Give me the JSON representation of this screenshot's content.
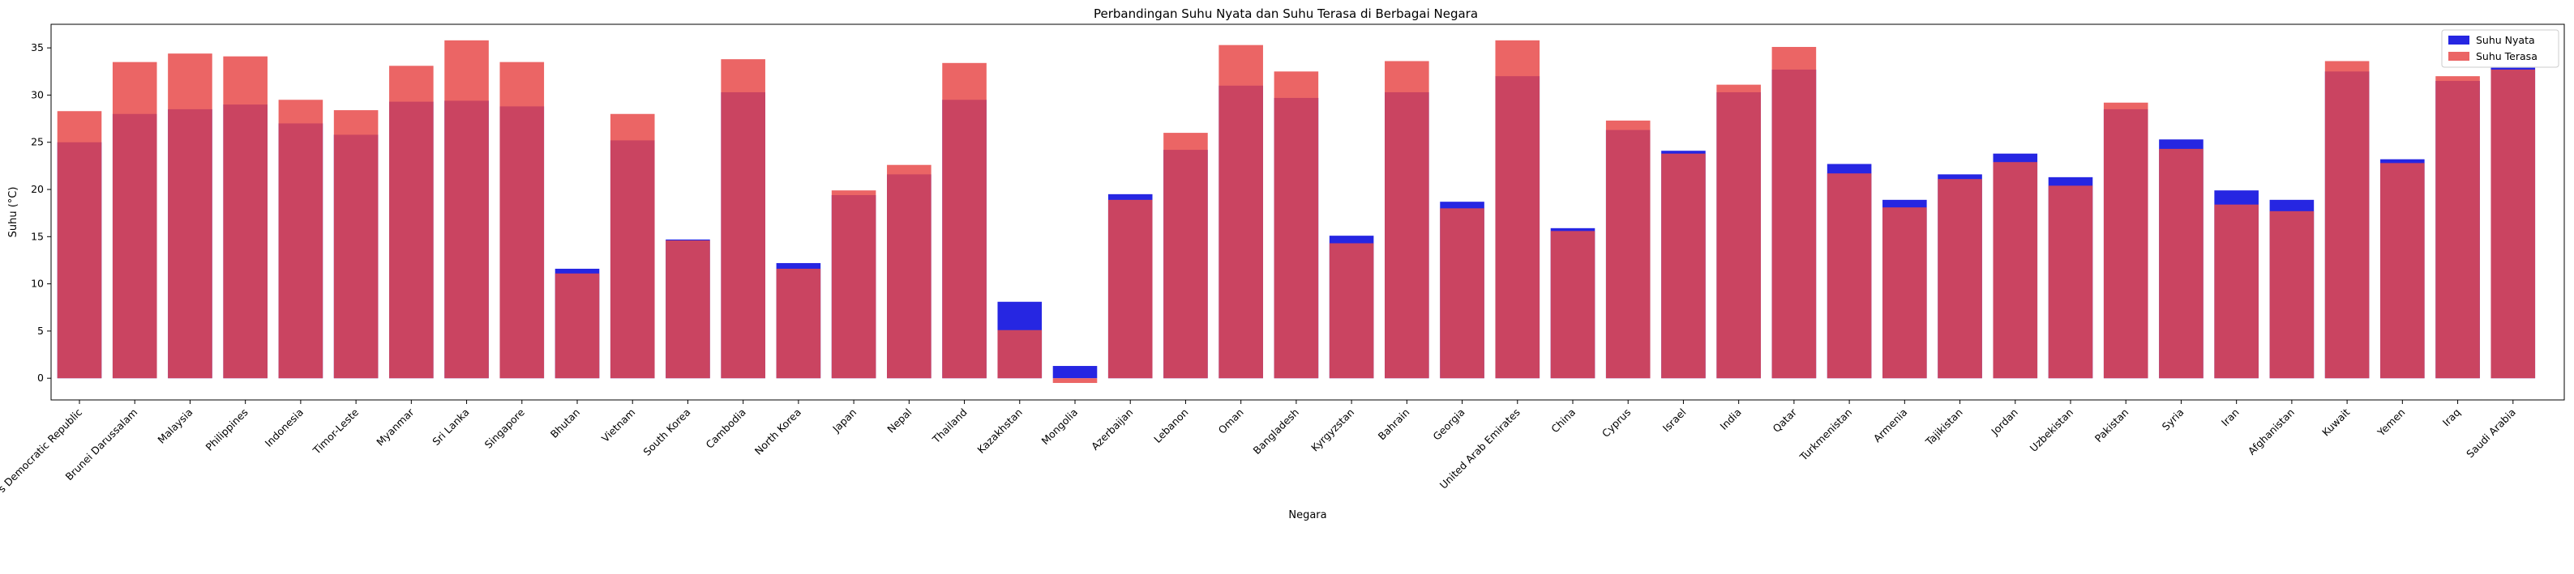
{
  "chart_data": {
    "type": "bar",
    "title": "Perbandingan Suhu Nyata dan Suhu Terasa di Berbagai Negara",
    "xlabel": "Negara",
    "ylabel": "Suhu (°C)",
    "ylim": [
      -2.3,
      37.5
    ],
    "yticks": [
      0,
      5,
      10,
      15,
      20,
      25,
      30,
      35
    ],
    "grid": false,
    "legend_position": "top-right",
    "categories": [
      "Lao People's Democratic Republic",
      "Brunei Darussalam",
      "Malaysia",
      "Philippines",
      "Indonesia",
      "Timor-Leste",
      "Myanmar",
      "Sri Lanka",
      "Singapore",
      "Bhutan",
      "Vietnam",
      "South Korea",
      "Cambodia",
      "North Korea",
      "Japan",
      "Nepal",
      "Thailand",
      "Kazakhstan",
      "Mongolia",
      "Azerbaijan",
      "Lebanon",
      "Oman",
      "Bangladesh",
      "Kyrgyzstan",
      "Bahrain",
      "Georgia",
      "United Arab Emirates",
      "China",
      "Cyprus",
      "Israel",
      "India",
      "Qatar",
      "Turkmenistan",
      "Armenia",
      "Tajikistan",
      "Jordan",
      "Uzbekistan",
      "Pakistan",
      "Syria",
      "Iran",
      "Afghanistan",
      "Kuwait",
      "Yemen",
      "Iraq",
      "Saudi Arabia"
    ],
    "series": [
      {
        "name": "Suhu Nyata",
        "color": "#1a1ae0",
        "values": [
          25.0,
          28.0,
          28.5,
          29.0,
          27.0,
          25.8,
          29.3,
          29.4,
          28.8,
          11.6,
          25.2,
          14.7,
          30.3,
          12.2,
          19.4,
          21.6,
          29.5,
          8.1,
          1.3,
          19.5,
          24.2,
          31.0,
          29.7,
          15.1,
          30.3,
          18.7,
          32.0,
          15.9,
          26.3,
          24.1,
          30.3,
          32.7,
          22.7,
          18.9,
          21.6,
          23.8,
          21.3,
          28.5,
          25.3,
          19.9,
          18.9,
          32.5,
          23.2,
          31.5,
          32.9
        ]
      },
      {
        "name": "Suhu Terasa",
        "color": "#e84a4a",
        "values": [
          28.3,
          33.5,
          34.4,
          34.1,
          29.5,
          28.4,
          33.1,
          35.8,
          33.5,
          11.1,
          28.0,
          14.6,
          33.8,
          11.6,
          19.9,
          22.6,
          33.4,
          5.1,
          -0.5,
          18.9,
          26.0,
          35.3,
          32.5,
          14.3,
          33.6,
          18.0,
          35.8,
          15.6,
          27.3,
          23.8,
          31.1,
          35.1,
          21.7,
          18.1,
          21.1,
          22.9,
          20.4,
          29.2,
          24.3,
          18.4,
          17.7,
          33.6,
          22.8,
          32.0,
          32.7
        ]
      }
    ]
  }
}
